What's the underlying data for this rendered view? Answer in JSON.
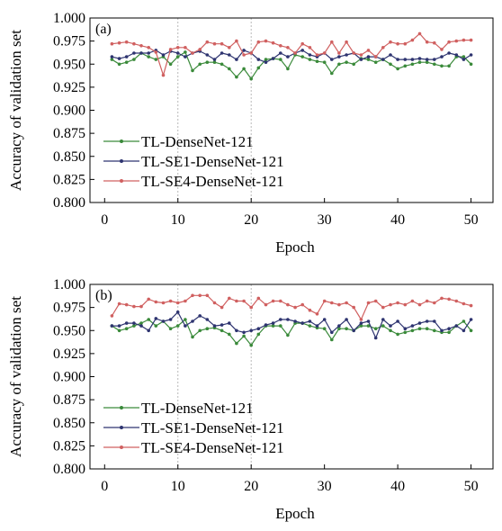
{
  "chart_data": [
    {
      "type": "line",
      "panel_label": "(a)",
      "xlabel": "Epoch",
      "ylabel": "Accuracy of validation set",
      "xlim": [
        -2,
        53
      ],
      "ylim": [
        0.8,
        1.0
      ],
      "xticks": [
        0,
        10,
        20,
        30,
        40,
        50
      ],
      "yticks": [
        0.8,
        0.825,
        0.85,
        0.875,
        0.9,
        0.925,
        0.95,
        0.975,
        1.0
      ],
      "ytick_labels": [
        "0.800",
        "0.825",
        "0.850",
        "0.875",
        "0.900",
        "0.925",
        "0.950",
        "0.975",
        "1.000"
      ],
      "grid": "vertical dotted lines at x = 10, 20",
      "legend_position": "lower-left",
      "x": [
        1,
        2,
        3,
        4,
        5,
        6,
        7,
        8,
        9,
        10,
        11,
        12,
        13,
        14,
        15,
        16,
        17,
        18,
        19,
        20,
        21,
        22,
        23,
        24,
        25,
        26,
        27,
        28,
        29,
        30,
        31,
        32,
        33,
        34,
        35,
        36,
        37,
        38,
        39,
        40,
        41,
        42,
        43,
        44,
        45,
        46,
        47,
        48,
        49,
        50
      ],
      "series": [
        {
          "name": "TL-DenseNet-121",
          "color": "#3a8a3a",
          "values": [
            0.955,
            0.95,
            0.952,
            0.955,
            0.962,
            0.958,
            0.955,
            0.958,
            0.95,
            0.958,
            0.963,
            0.943,
            0.95,
            0.952,
            0.952,
            0.95,
            0.945,
            0.936,
            0.945,
            0.934,
            0.946,
            0.955,
            0.956,
            0.955,
            0.945,
            0.96,
            0.958,
            0.955,
            0.953,
            0.952,
            0.94,
            0.95,
            0.952,
            0.95,
            0.956,
            0.955,
            0.952,
            0.955,
            0.95,
            0.945,
            0.948,
            0.95,
            0.952,
            0.952,
            0.95,
            0.948,
            0.948,
            0.958,
            0.958,
            0.95
          ]
        },
        {
          "name": "TL-SE1-DenseNet-121",
          "color": "#2e3470",
          "values": [
            0.958,
            0.956,
            0.958,
            0.962,
            0.962,
            0.962,
            0.965,
            0.96,
            0.964,
            0.962,
            0.958,
            0.962,
            0.964,
            0.96,
            0.955,
            0.962,
            0.96,
            0.955,
            0.965,
            0.962,
            0.955,
            0.952,
            0.956,
            0.962,
            0.958,
            0.962,
            0.965,
            0.96,
            0.958,
            0.962,
            0.955,
            0.958,
            0.96,
            0.962,
            0.955,
            0.958,
            0.958,
            0.955,
            0.96,
            0.955,
            0.955,
            0.955,
            0.956,
            0.955,
            0.955,
            0.958,
            0.962,
            0.96,
            0.955,
            0.96
          ]
        },
        {
          "name": "TL-SE4-DenseNet-121",
          "color": "#d06060",
          "values": [
            0.972,
            0.973,
            0.974,
            0.972,
            0.97,
            0.968,
            0.963,
            0.938,
            0.966,
            0.968,
            0.968,
            0.962,
            0.966,
            0.974,
            0.972,
            0.972,
            0.968,
            0.975,
            0.96,
            0.962,
            0.974,
            0.975,
            0.973,
            0.97,
            0.968,
            0.962,
            0.972,
            0.968,
            0.96,
            0.962,
            0.974,
            0.962,
            0.974,
            0.962,
            0.96,
            0.965,
            0.958,
            0.968,
            0.974,
            0.972,
            0.972,
            0.976,
            0.983,
            0.974,
            0.973,
            0.966,
            0.974,
            0.975,
            0.976,
            0.976
          ]
        }
      ]
    },
    {
      "type": "line",
      "panel_label": "(b)",
      "xlabel": "Epoch",
      "ylabel": "Accuracy of validation set",
      "xlim": [
        -2,
        53
      ],
      "ylim": [
        0.8,
        1.0
      ],
      "xticks": [
        0,
        10,
        20,
        30,
        40,
        50
      ],
      "yticks": [
        0.8,
        0.825,
        0.85,
        0.875,
        0.9,
        0.925,
        0.95,
        0.975,
        1.0
      ],
      "ytick_labels": [
        "0.800",
        "0.825",
        "0.850",
        "0.875",
        "0.900",
        "0.925",
        "0.950",
        "0.975",
        "1.000"
      ],
      "grid": "vertical dotted lines at x = 10, 20",
      "legend_position": "lower-left",
      "x": [
        1,
        2,
        3,
        4,
        5,
        6,
        7,
        8,
        9,
        10,
        11,
        12,
        13,
        14,
        15,
        16,
        17,
        18,
        19,
        20,
        21,
        22,
        23,
        24,
        25,
        26,
        27,
        28,
        29,
        30,
        31,
        32,
        33,
        34,
        35,
        36,
        37,
        38,
        39,
        40,
        41,
        42,
        43,
        44,
        45,
        46,
        47,
        48,
        49,
        50
      ],
      "series": [
        {
          "name": "TL-DenseNet-121",
          "color": "#3a8a3a",
          "values": [
            0.955,
            0.95,
            0.952,
            0.955,
            0.958,
            0.962,
            0.955,
            0.96,
            0.952,
            0.955,
            0.962,
            0.943,
            0.95,
            0.952,
            0.953,
            0.95,
            0.946,
            0.936,
            0.944,
            0.934,
            0.946,
            0.955,
            0.955,
            0.955,
            0.945,
            0.958,
            0.958,
            0.955,
            0.953,
            0.952,
            0.94,
            0.952,
            0.952,
            0.95,
            0.955,
            0.955,
            0.952,
            0.955,
            0.95,
            0.946,
            0.948,
            0.95,
            0.952,
            0.952,
            0.95,
            0.948,
            0.948,
            0.955,
            0.96,
            0.95
          ]
        },
        {
          "name": "TL-SE1-DenseNet-121",
          "color": "#2e3470",
          "values": [
            0.955,
            0.955,
            0.958,
            0.958,
            0.955,
            0.95,
            0.963,
            0.96,
            0.962,
            0.97,
            0.955,
            0.96,
            0.966,
            0.962,
            0.955,
            0.956,
            0.958,
            0.95,
            0.948,
            0.95,
            0.952,
            0.956,
            0.958,
            0.962,
            0.962,
            0.96,
            0.958,
            0.96,
            0.955,
            0.962,
            0.948,
            0.955,
            0.962,
            0.95,
            0.958,
            0.96,
            0.942,
            0.962,
            0.955,
            0.96,
            0.952,
            0.955,
            0.958,
            0.96,
            0.96,
            0.95,
            0.952,
            0.955,
            0.95,
            0.962
          ]
        },
        {
          "name": "TL-SE4-DenseNet-121",
          "color": "#d06060",
          "values": [
            0.966,
            0.979,
            0.978,
            0.976,
            0.976,
            0.984,
            0.981,
            0.98,
            0.982,
            0.98,
            0.982,
            0.988,
            0.988,
            0.988,
            0.98,
            0.975,
            0.985,
            0.982,
            0.982,
            0.975,
            0.985,
            0.978,
            0.982,
            0.982,
            0.978,
            0.975,
            0.978,
            0.972,
            0.968,
            0.982,
            0.98,
            0.978,
            0.98,
            0.975,
            0.962,
            0.98,
            0.982,
            0.975,
            0.978,
            0.98,
            0.978,
            0.982,
            0.978,
            0.982,
            0.98,
            0.985,
            0.984,
            0.982,
            0.979,
            0.977
          ]
        }
      ]
    }
  ]
}
